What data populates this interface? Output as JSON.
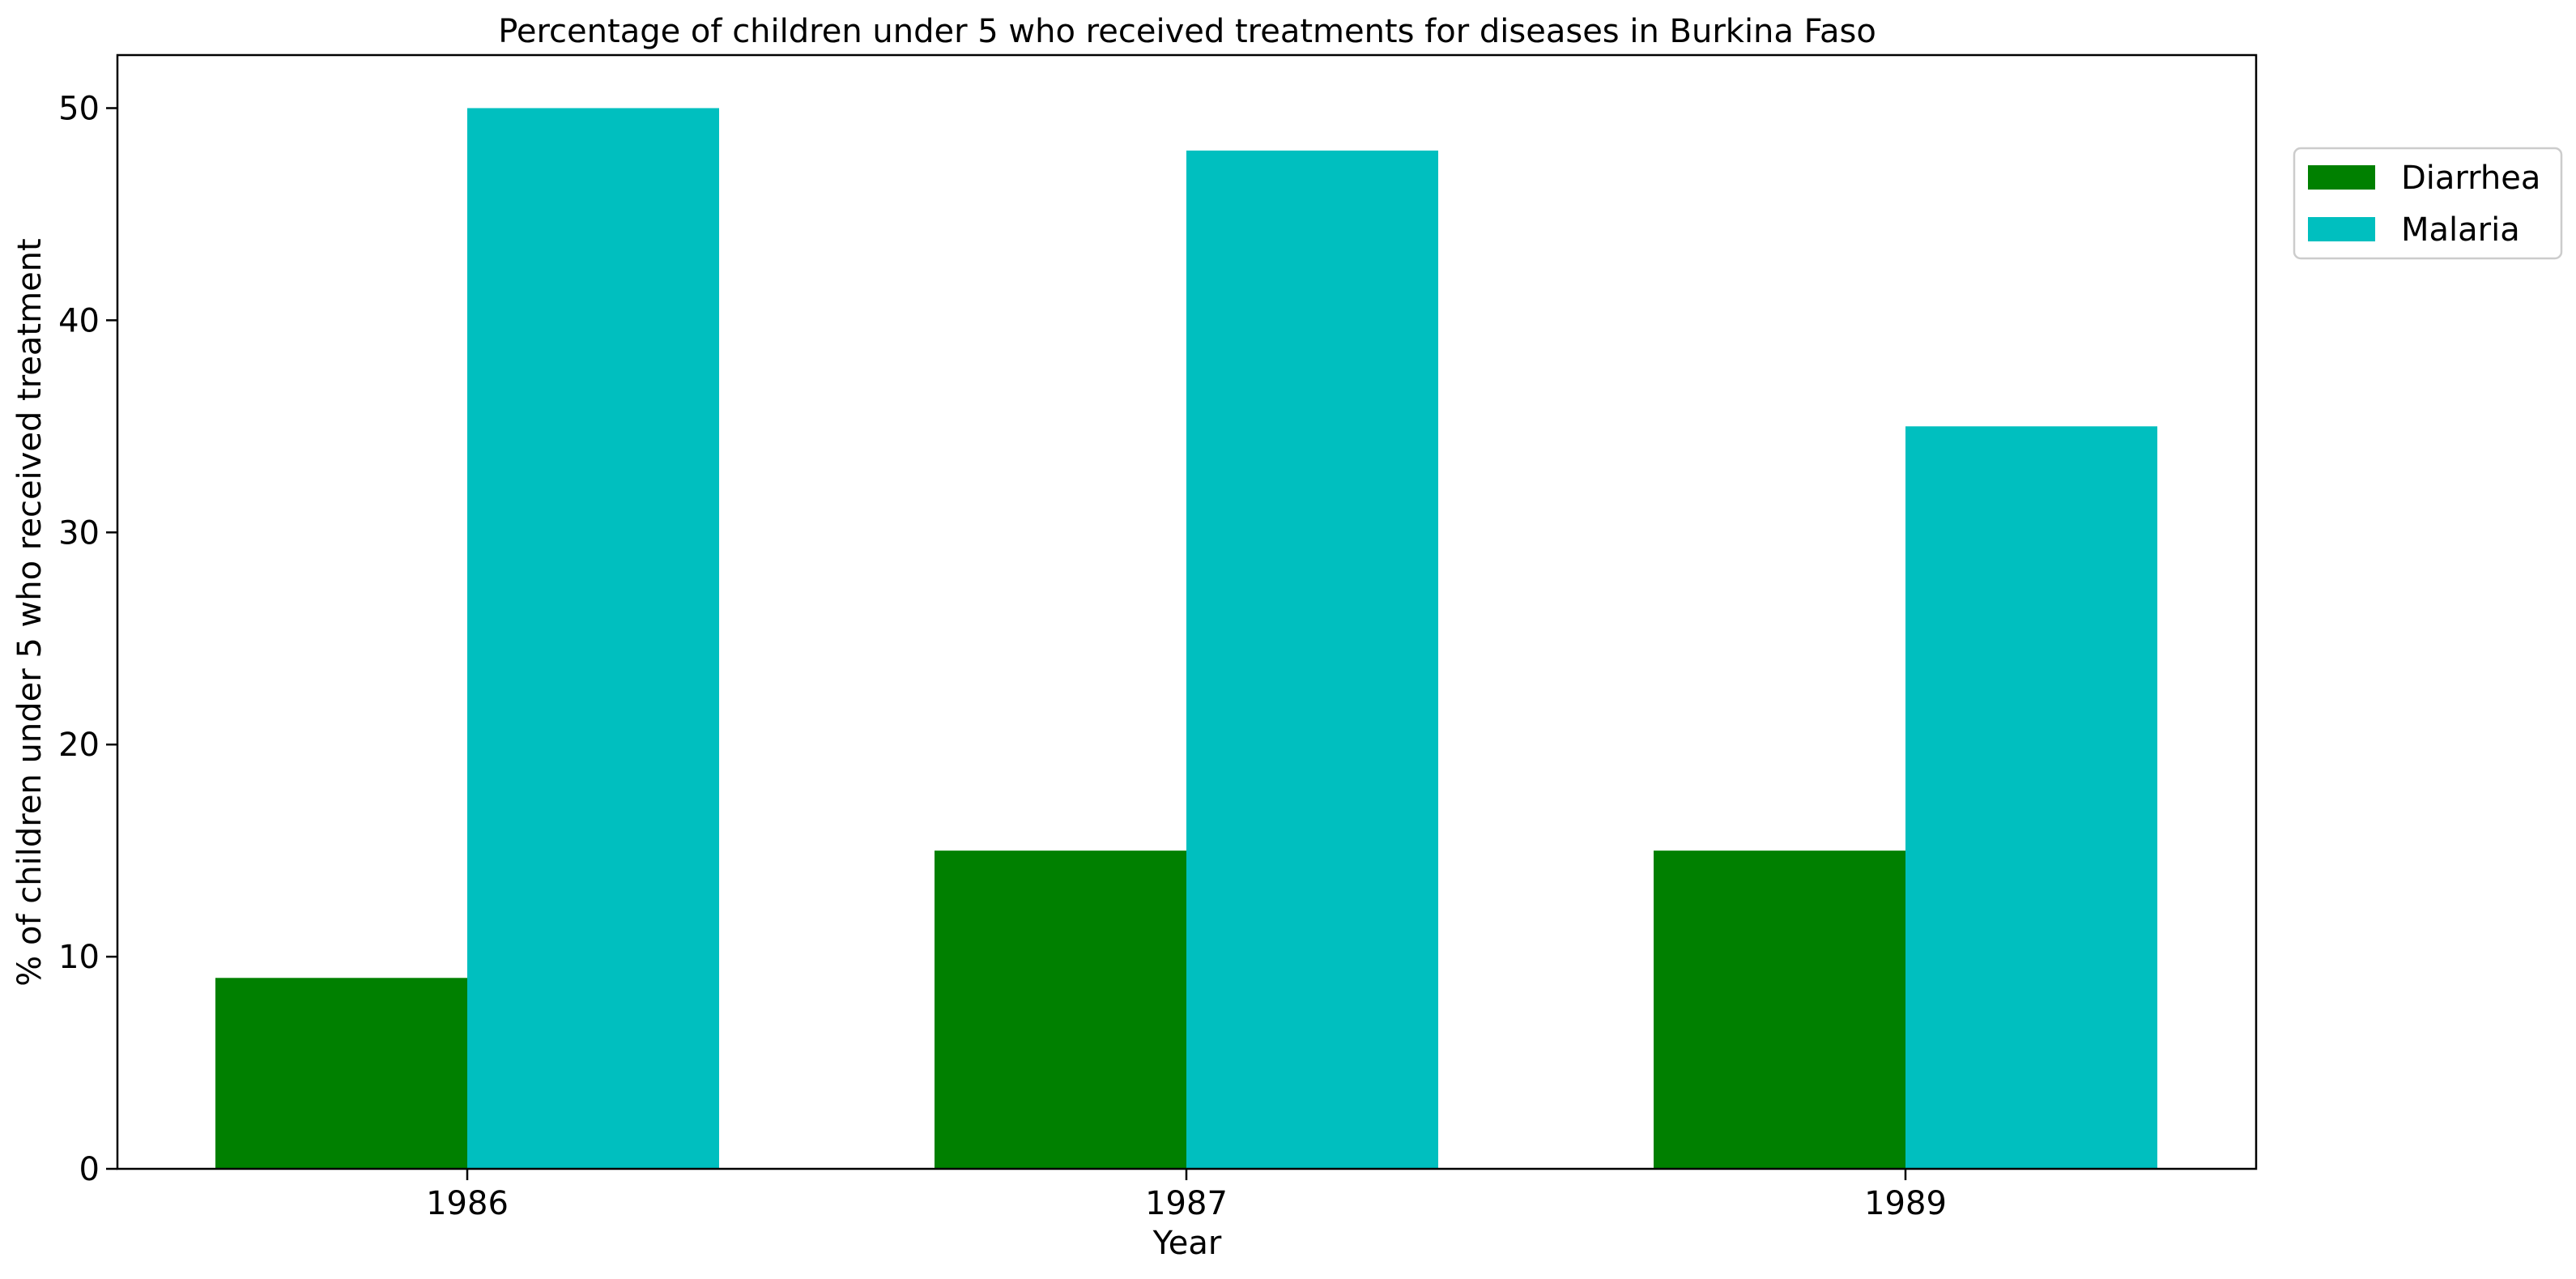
{
  "chart_data": {
    "type": "bar",
    "title": "Percentage of children under 5 who received treatments for diseases in Burkina Faso",
    "xlabel": "Year",
    "ylabel": "% of children under 5 who received treatment",
    "categories": [
      "1986",
      "1987",
      "1989"
    ],
    "series": [
      {
        "name": "Diarrhea",
        "values": [
          9,
          15,
          15
        ],
        "color": "#008000"
      },
      {
        "name": "Malaria",
        "values": [
          50,
          48,
          35
        ],
        "color": "#00BFBF"
      }
    ],
    "ylim": [
      0,
      52.5
    ],
    "yticks": [
      0,
      10,
      20,
      30,
      40,
      50
    ],
    "grid": false,
    "legend_position": "upper-right-outside"
  }
}
